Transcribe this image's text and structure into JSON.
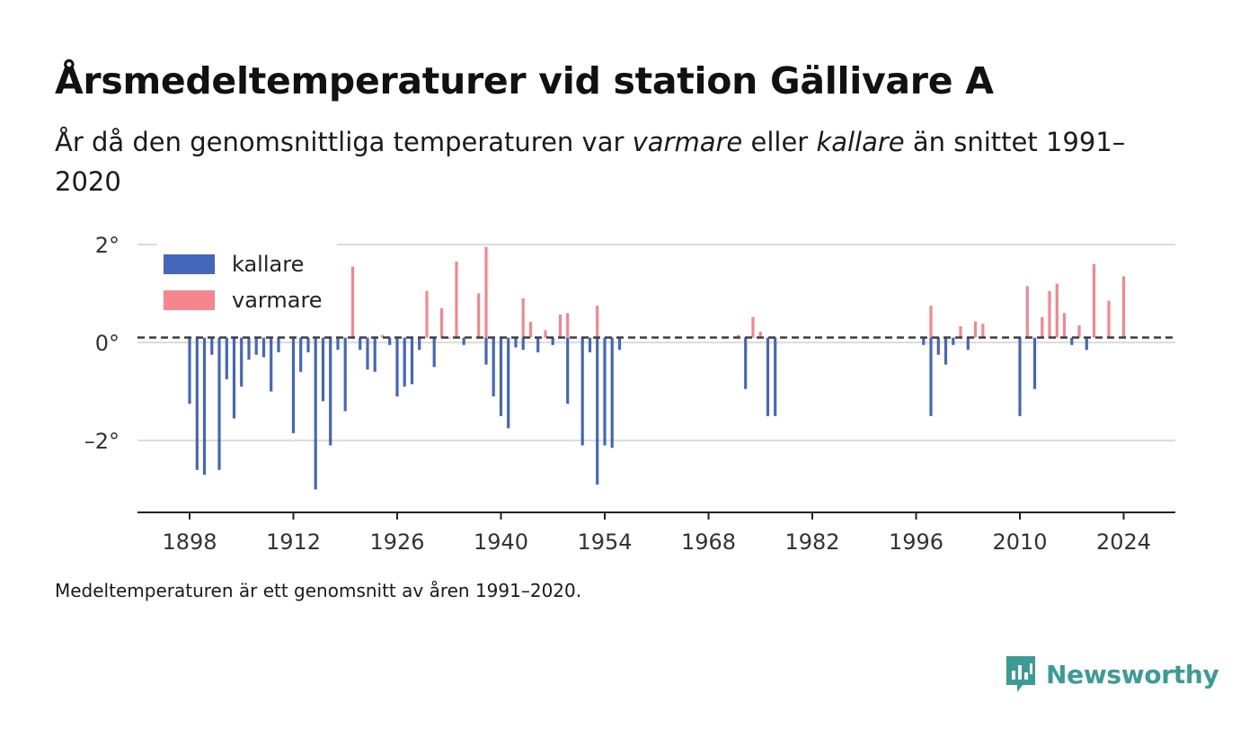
{
  "header": {
    "title": "Årsmedeltemperaturer vid station Gällivare A",
    "subtitle_pre": "År då den genomsnittliga temperaturen var ",
    "subtitle_warm": "varmare",
    "subtitle_mid": " eller ",
    "subtitle_cold": "kallare",
    "subtitle_post": " än snittet 1991–2020"
  },
  "footer": {
    "note": "Medeltemperaturen är ett genomsnitt av åren 1991–2020.",
    "brand": "Newsworthy"
  },
  "colors": {
    "kallare": "#4466bb",
    "varmare": "#f7858f",
    "brand": "#3a9c95"
  },
  "chart_data": {
    "type": "bar",
    "xlabel": "",
    "ylabel": "",
    "ylim": [
      -3.5,
      2.1
    ],
    "xlim": [
      1891,
      2031
    ],
    "baseline": 0.1,
    "grid": true,
    "legend": {
      "placement": "top-left",
      "entries": [
        "kallare",
        "varmare"
      ]
    },
    "x_ticks": [
      "1898",
      "1912",
      "1926",
      "1940",
      "1954",
      "1968",
      "1982",
      "1996",
      "2010",
      "2024"
    ],
    "y_ticks": [
      {
        "value": 2,
        "label": "2°"
      },
      {
        "value": 0,
        "label": "0°"
      },
      {
        "value": -2,
        "label": "–2°"
      }
    ],
    "series": [
      {
        "name": "kallare",
        "color": "#4466bb",
        "x": [
          1898,
          1899,
          1900,
          1901,
          1902,
          1903,
          1904,
          1905,
          1906,
          1907,
          1908,
          1909,
          1910,
          1912,
          1913,
          1914,
          1915,
          1916,
          1917,
          1918,
          1919,
          1921,
          1922,
          1923,
          1925,
          1926,
          1927,
          1928,
          1929,
          1931,
          1935,
          1938,
          1939,
          1940,
          1941,
          1942,
          1943,
          1945,
          1947,
          1949,
          1951,
          1952,
          1953,
          1954,
          1955,
          1956,
          1973,
          1976,
          1977,
          1997,
          1998,
          1999,
          2000,
          2001,
          2003,
          2010,
          2012,
          2017,
          2019
        ],
        "values": [
          -1.25,
          -2.6,
          -2.7,
          -0.25,
          -2.6,
          -0.75,
          -1.55,
          -0.9,
          -0.35,
          -0.25,
          -0.3,
          -1.0,
          -0.2,
          -1.85,
          -0.6,
          -0.2,
          -3.0,
          -1.2,
          -2.1,
          -0.15,
          -1.4,
          -0.15,
          -0.55,
          -0.6,
          -0.05,
          -1.1,
          -0.9,
          -0.85,
          -0.15,
          -0.5,
          -0.05,
          -0.45,
          -1.1,
          -1.5,
          -1.75,
          -0.1,
          -0.15,
          -0.2,
          -0.05,
          -1.25,
          -2.1,
          -0.2,
          -2.9,
          -2.1,
          -2.15,
          -0.15,
          -0.95,
          -1.5,
          -1.5,
          -0.05,
          -1.5,
          -0.25,
          -0.45,
          -0.05,
          -0.15,
          -1.5,
          -0.95,
          -0.05,
          -0.15
        ]
      },
      {
        "name": "varmare",
        "color": "#f7858f",
        "x": [
          1920,
          1924,
          1930,
          1932,
          1933,
          1934,
          1937,
          1938,
          1943,
          1944,
          1946,
          1948,
          1949,
          1953,
          1972,
          1974,
          1975,
          1998,
          2002,
          2004,
          2005,
          2006,
          2011,
          2013,
          2014,
          2015,
          2016,
          2018,
          2020,
          2022,
          2024
        ],
        "values": [
          1.55,
          0.15,
          1.05,
          0.7,
          0.1,
          1.65,
          1.0,
          1.95,
          0.9,
          0.42,
          0.25,
          0.57,
          0.6,
          0.75,
          0.15,
          0.52,
          0.22,
          0.75,
          0.33,
          0.43,
          0.38,
          0.12,
          1.15,
          0.52,
          1.05,
          1.2,
          0.6,
          0.35,
          1.6,
          0.85,
          1.35
        ]
      }
    ]
  }
}
